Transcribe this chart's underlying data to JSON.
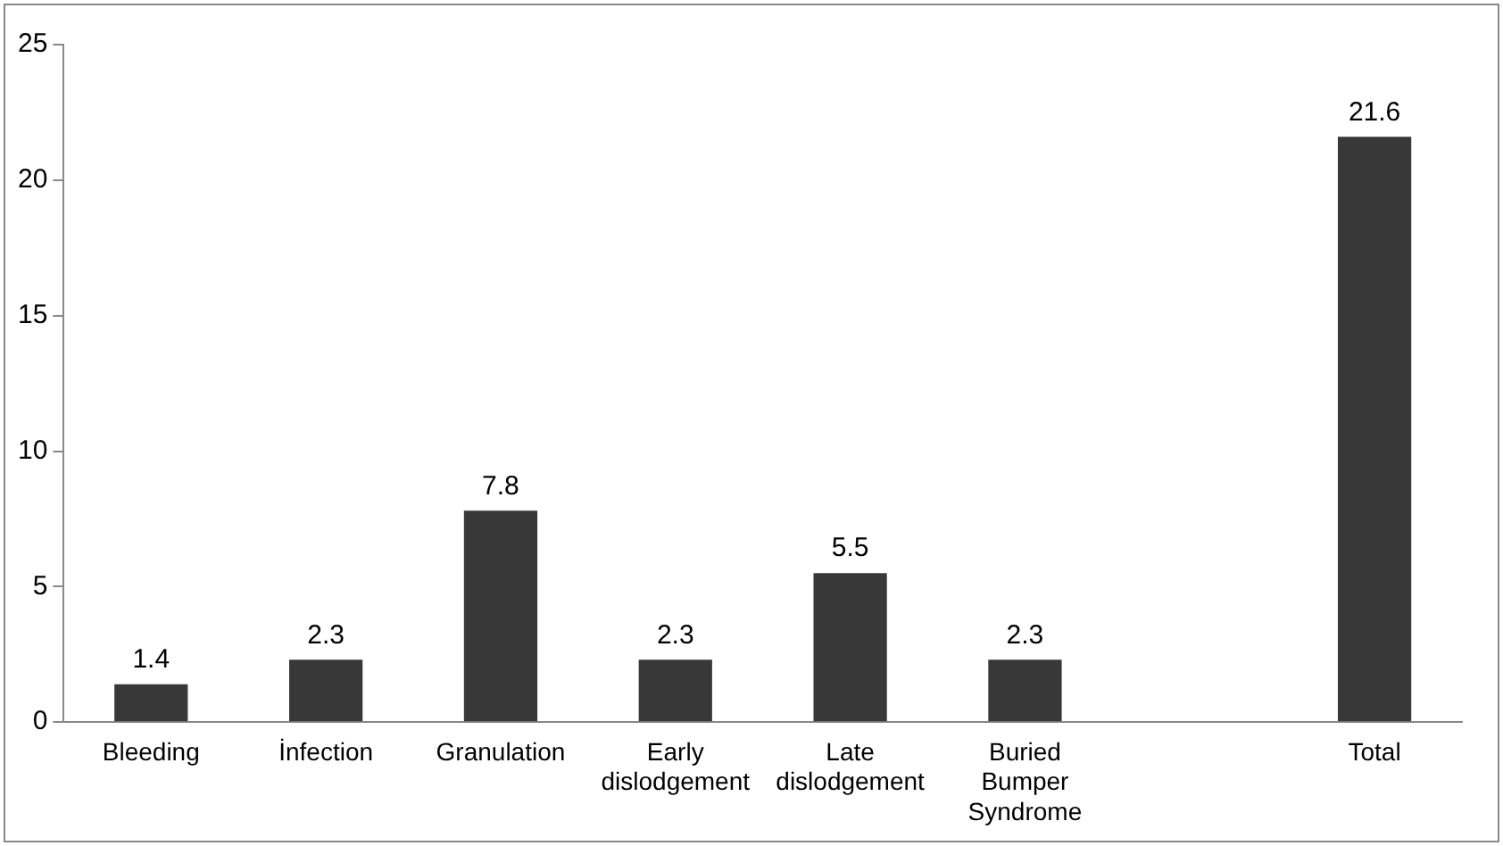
{
  "chart_data": {
    "type": "bar",
    "categories": [
      "Bleeding",
      "İnfection",
      "Granulation",
      "Early dislodgement",
      "Late dislodgement",
      "Buried Bumper Syndrome",
      null,
      "Total"
    ],
    "values": [
      1.4,
      2.3,
      7.8,
      2.3,
      5.5,
      2.3,
      null,
      21.6
    ],
    "color": "#383838",
    "ylim": [
      0,
      25
    ],
    "yticks": [
      0,
      5,
      10,
      15,
      20,
      25
    ],
    "grid": false,
    "legend": false,
    "data_labels": true
  }
}
